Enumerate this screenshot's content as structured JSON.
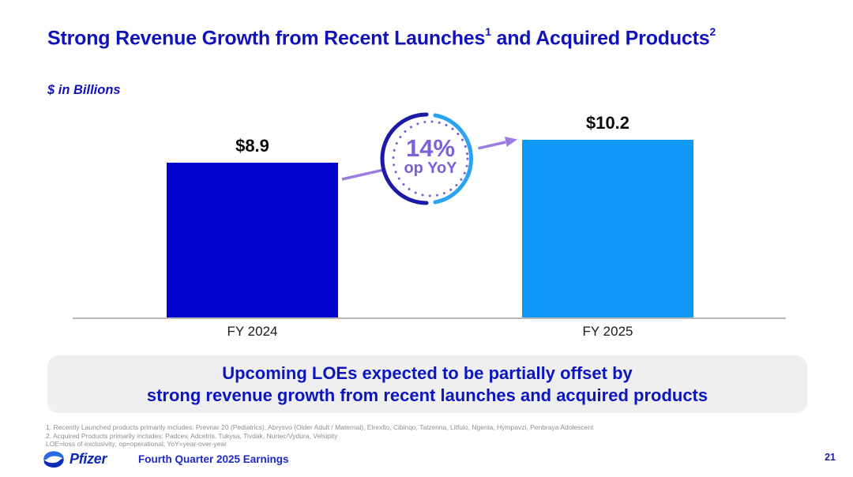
{
  "header": {
    "title_part1": "Strong Revenue Growth from Recent Launches",
    "title_sup1": "1",
    "title_part2": " and Acquired Products",
    "title_sup2": "2",
    "units_label": "$ in Billions"
  },
  "chart_data": {
    "type": "bar",
    "categories": [
      "FY 2024",
      "FY 2025"
    ],
    "values": [
      8.9,
      10.2
    ],
    "value_labels": [
      "$8.9",
      "$10.2"
    ],
    "bar_colors": [
      "#0202cc",
      "#0d99f5"
    ],
    "title": "Strong Revenue Growth from Recent Launches and Acquired Products",
    "ylabel": "$ in Billions",
    "xlabel": "",
    "grid": "off",
    "annotation": {
      "percent": "14%",
      "sub": "op YoY"
    }
  },
  "badge": {
    "percent": "14%",
    "sub": "op YoY"
  },
  "callout": {
    "line1": "Upcoming LOEs expected to be partially offset by",
    "line2": "strong revenue growth from recent launches and acquired products"
  },
  "footnotes": {
    "line1": "1. Recently Launched products primarily includes: Prevnar 20 (Pediatrics), Abrysvo (Older Adult / Maternal), Elrexfio, Cibinqo, Talzenna, Litfulo, Ngenla, Hympavzi, Penbraya Adolescent",
    "line2": "2. Acquired Products primarily includes: Padcev, Adcetris, Tukysa, Tivdak, Nurtec/Vydura, Velsipity",
    "line3": "LOE=loss of exclusivity; op=operational; YoY=year-over-year"
  },
  "footer": {
    "brand": "Pfizer",
    "label": "Fourth Quarter 2025 Earnings",
    "page": "21"
  },
  "colors": {
    "title_blue": "#1113b9",
    "bar_dark_blue": "#0202cc",
    "bar_light_blue": "#0d99f5",
    "badge_purple": "#7d5fd6",
    "arrow_purple": "#9d7ce2",
    "arc_dark": "#1b1ba8",
    "arc_light": "#2aa3f0",
    "callout_bg": "#efefef",
    "footnote_gray": "#8f8f8f"
  }
}
